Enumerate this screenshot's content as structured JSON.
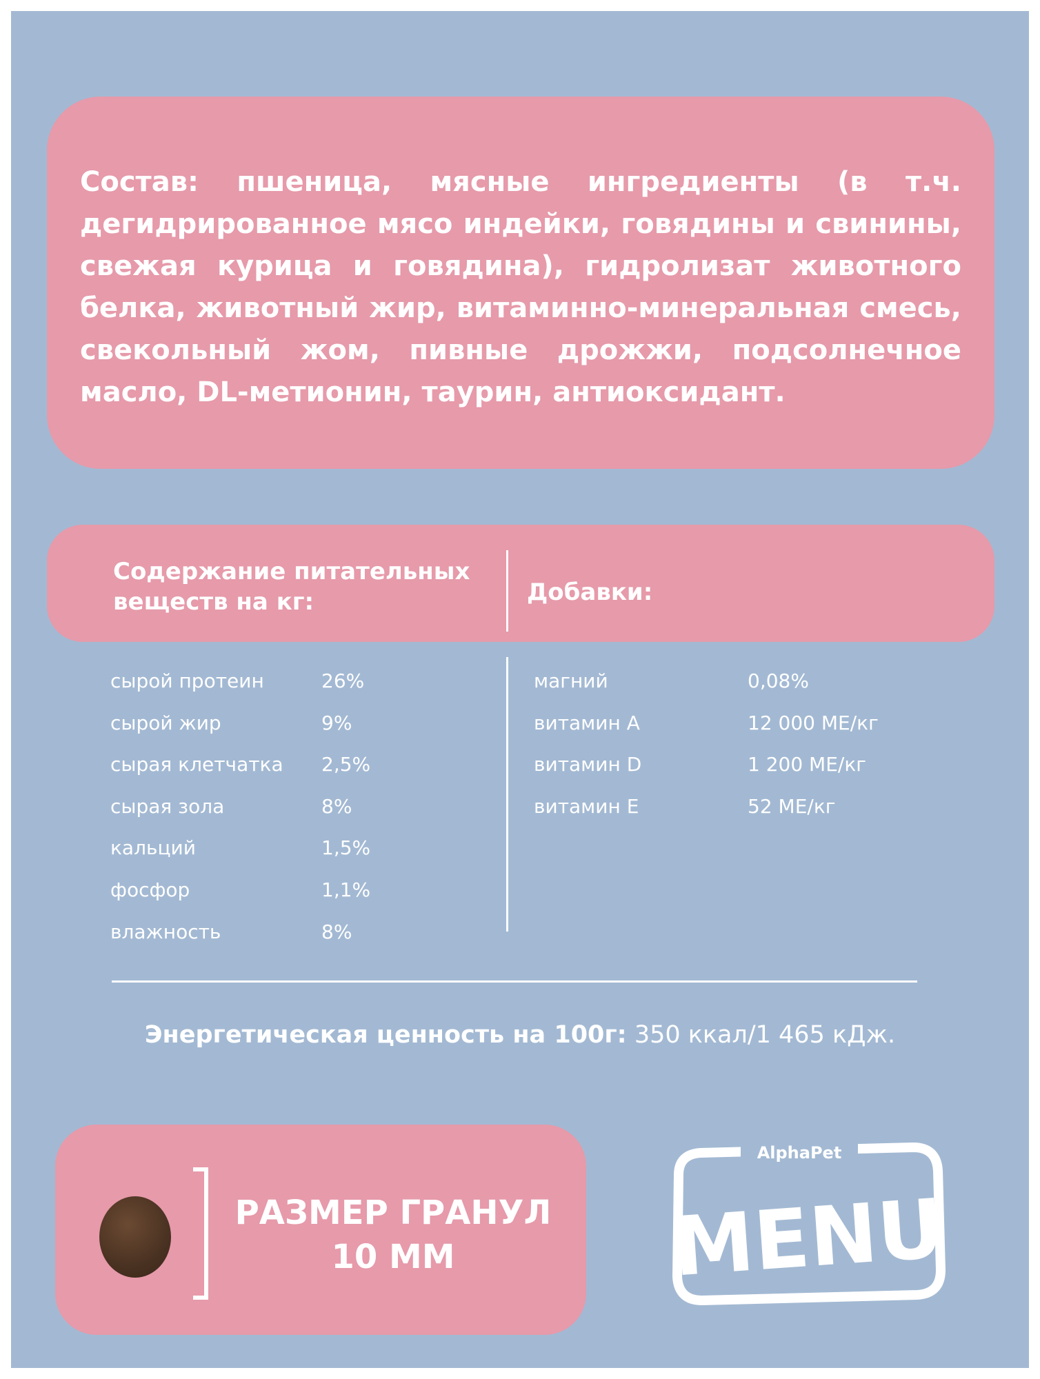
{
  "composition": {
    "label": "Состав:",
    "text": "пшеница, мясные ингредиенты (в т.ч. дегидрированное мясо индейки, говядины и свинины, свежая курица и говядина), гидролизат животного белка, животный жир, витаминно-минеральная смесь, свекольный жом, пивные дрожжи, подсолнечное масло, DL-метионин, таурин, антиоксидант."
  },
  "nutrients": {
    "heading_line1": "Содержание питательных",
    "heading_line2": "веществ на кг:",
    "items": [
      {
        "name": "сырой протеин",
        "value": "26%"
      },
      {
        "name": "сырой жир",
        "value": "9%"
      },
      {
        "name": "сырая клетчатка",
        "value": "2,5%"
      },
      {
        "name": "сырая зола",
        "value": "8%"
      },
      {
        "name": "кальций",
        "value": "1,5%"
      },
      {
        "name": "фосфор",
        "value": "1,1%"
      },
      {
        "name": "влажность",
        "value": "8%"
      }
    ]
  },
  "additives": {
    "heading": "Добавки:",
    "items": [
      {
        "name": "магний",
        "value": "0,08%"
      },
      {
        "name": "витамин А",
        "value": "12 000 МЕ/кг"
      },
      {
        "name": "витамин D",
        "value": "1 200 МЕ/кг"
      },
      {
        "name": "витамин Е",
        "value": "52 МЕ/кг"
      }
    ]
  },
  "energy": {
    "label": "Энергетическая ценность на 100г:",
    "value": "350 ккал/1 465 кДж."
  },
  "granule": {
    "line1": "РАЗМЕР ГРАНУЛ",
    "line2": "10 ММ"
  },
  "logo": {
    "brand": "AlphaPet",
    "word": "MENU"
  },
  "colors": {
    "background": "#a3b9d3",
    "panel": "#e69aaa",
    "text": "#ffffff"
  }
}
